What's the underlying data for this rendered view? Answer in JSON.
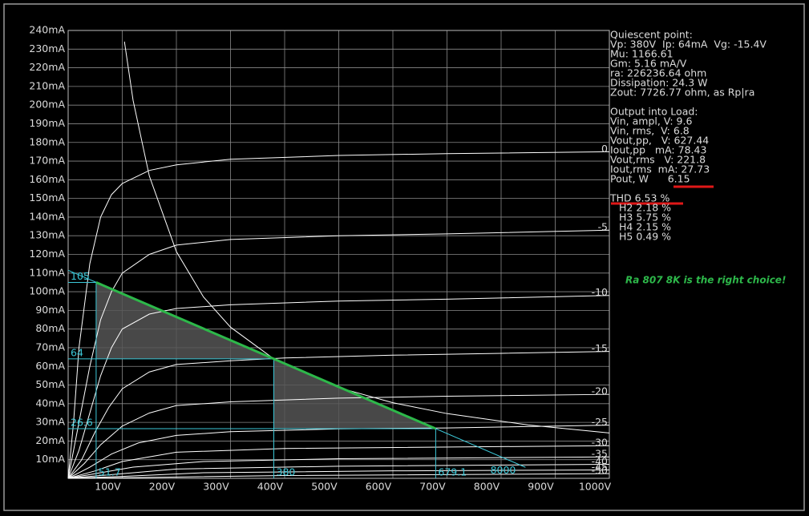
{
  "chart_data": {
    "type": "line",
    "xlim": [
      0,
      1000
    ],
    "ylim": [
      0,
      240
    ],
    "xticks": [
      {
        "value": 100,
        "label": "100V"
      },
      {
        "value": 200,
        "label": "200V"
      },
      {
        "value": 300,
        "label": "300V"
      },
      {
        "value": 400,
        "label": "400V"
      },
      {
        "value": 500,
        "label": "500V"
      },
      {
        "value": 600,
        "label": "600V"
      },
      {
        "value": 700,
        "label": "700V"
      },
      {
        "value": 800,
        "label": "800V"
      },
      {
        "value": 900,
        "label": "900V"
      },
      {
        "value": 1000,
        "label": "1000V"
      }
    ],
    "yticks": [
      {
        "value": 10,
        "label": "10mA"
      },
      {
        "value": 20,
        "label": "20mA"
      },
      {
        "value": 30,
        "label": "30mA"
      },
      {
        "value": 40,
        "label": "40mA"
      },
      {
        "value": 50,
        "label": "50mA"
      },
      {
        "value": 60,
        "label": "60mA"
      },
      {
        "value": 70,
        "label": "70mA"
      },
      {
        "value": 80,
        "label": "80mA"
      },
      {
        "value": 90,
        "label": "90mA"
      },
      {
        "value": 100,
        "label": "100mA"
      },
      {
        "value": 110,
        "label": "110mA"
      },
      {
        "value": 120,
        "label": "120mA"
      },
      {
        "value": 130,
        "label": "130mA"
      },
      {
        "value": 140,
        "label": "140mA"
      },
      {
        "value": 150,
        "label": "150mA"
      },
      {
        "value": 160,
        "label": "160mA"
      },
      {
        "value": 170,
        "label": "170mA"
      },
      {
        "value": 180,
        "label": "180mA"
      },
      {
        "value": 190,
        "label": "190mA"
      },
      {
        "value": 200,
        "label": "200mA"
      },
      {
        "value": 210,
        "label": "210mA"
      },
      {
        "value": 220,
        "label": "220mA"
      },
      {
        "value": 230,
        "label": "230mA"
      },
      {
        "value": 240,
        "label": "240mA"
      }
    ],
    "grid": true,
    "series": [
      {
        "name": "0",
        "color": "#ffffff",
        "x": [
          0,
          10,
          20,
          40,
          60,
          80,
          100,
          150,
          200,
          300,
          500,
          700,
          1000
        ],
        "values": [
          0,
          30,
          70,
          115,
          140,
          152,
          158,
          165,
          168,
          171,
          173,
          174,
          175
        ]
      },
      {
        "name": "-5",
        "color": "#ffffff",
        "x": [
          0,
          20,
          40,
          60,
          80,
          100,
          150,
          200,
          300,
          500,
          700,
          1000
        ],
        "values": [
          0,
          30,
          60,
          85,
          100,
          110,
          120,
          125,
          128,
          130,
          131,
          133
        ]
      },
      {
        "name": "-10",
        "color": "#ffffff",
        "x": [
          0,
          20,
          40,
          60,
          80,
          100,
          150,
          200,
          300,
          500,
          700,
          1000
        ],
        "values": [
          0,
          15,
          35,
          55,
          70,
          80,
          88,
          91,
          93,
          95,
          96,
          98
        ]
      },
      {
        "name": "-15",
        "color": "#ffffff",
        "x": [
          0,
          25,
          50,
          75,
          100,
          150,
          200,
          300,
          400,
          600,
          800,
          1000
        ],
        "values": [
          0,
          10,
          25,
          38,
          48,
          57,
          61,
          63,
          64.5,
          66,
          67,
          68
        ]
      },
      {
        "name": "-20",
        "color": "#ffffff",
        "x": [
          0,
          30,
          60,
          100,
          150,
          200,
          300,
          500,
          700,
          1000
        ],
        "values": [
          0,
          8,
          18,
          28,
          35,
          39,
          41,
          43,
          44,
          45
        ]
      },
      {
        "name": "-25",
        "color": "#ffffff",
        "x": [
          0,
          40,
          80,
          130,
          200,
          300,
          500,
          700,
          1000
        ],
        "values": [
          0,
          6,
          13,
          19,
          23,
          25,
          26.5,
          27,
          28.5
        ]
      },
      {
        "name": "-30",
        "color": "#ffffff",
        "x": [
          0,
          50,
          100,
          200,
          400,
          1000
        ],
        "values": [
          0,
          4,
          9,
          14,
          16,
          17.5
        ]
      },
      {
        "name": "-35",
        "color": "#ffffff",
        "x": [
          0,
          60,
          120,
          250,
          500,
          1000
        ],
        "values": [
          0,
          3,
          6,
          9,
          10.5,
          11.5
        ]
      },
      {
        "name": "-40",
        "color": "#ffffff",
        "x": [
          0,
          80,
          200,
          500,
          1000
        ],
        "values": [
          0,
          2,
          5,
          6.5,
          7.5
        ]
      },
      {
        "name": "-45",
        "color": "#ffffff",
        "x": [
          0,
          100,
          250,
          600,
          1000
        ],
        "values": [
          0,
          1,
          3,
          4,
          4.5
        ]
      },
      {
        "name": "-50",
        "color": "#ffffff",
        "x": [
          0,
          150,
          400,
          1000
        ],
        "values": [
          0,
          0.5,
          1.5,
          2.5
        ]
      }
    ],
    "dissipation_curve": {
      "color": "#ffffff",
      "x": [
        104,
        120,
        150,
        200,
        250,
        300,
        380,
        500,
        600,
        700,
        850,
        1000
      ],
      "values": [
        234,
        202.5,
        162,
        121.5,
        97.2,
        81,
        64,
        48.6,
        40.5,
        34.7,
        28.6,
        24.3
      ]
    },
    "load_line": {
      "color": "#3cc8d8",
      "x": [
        0,
        845
      ],
      "values": [
        111.5,
        5.9
      ]
    },
    "operating_points": {
      "color": "#2db84a",
      "fill": "#555555",
      "x": [
        51.7,
        380,
        679.1
      ],
      "values": [
        105,
        64,
        26.6
      ]
    },
    "load_resistance": 8000,
    "quiescent": [
      "Quiescent point:",
      "Vp: 380V  Ip: 64mA  Vg: -15.4V",
      "Mu: 1166.61",
      "Gm: 5.16 mA/V",
      "ra: 226236.64 ohm",
      "Dissipation: 24.3 W",
      "Zout: 7726.77 ohm, as Rp|ra"
    ],
    "output": [
      "Output into Load:",
      "Vin, ampl, V: 9.6",
      "Vin, rms,  V: 6.8",
      "Vout,pp,   V: 627.44",
      "Iout,pp   mA: 78.43",
      "Vout,rms   V: 221.8",
      "Iout,rms  mA: 27.73",
      "Pout, W      6.15"
    ],
    "harmonics": [
      "THD 6.53 %",
      "H2 2.18 %",
      "H3 5.75 %",
      "H4 2.15 %",
      "H5 0.49 %"
    ],
    "annotation": "Ra 807 8K is the right choice!"
  }
}
